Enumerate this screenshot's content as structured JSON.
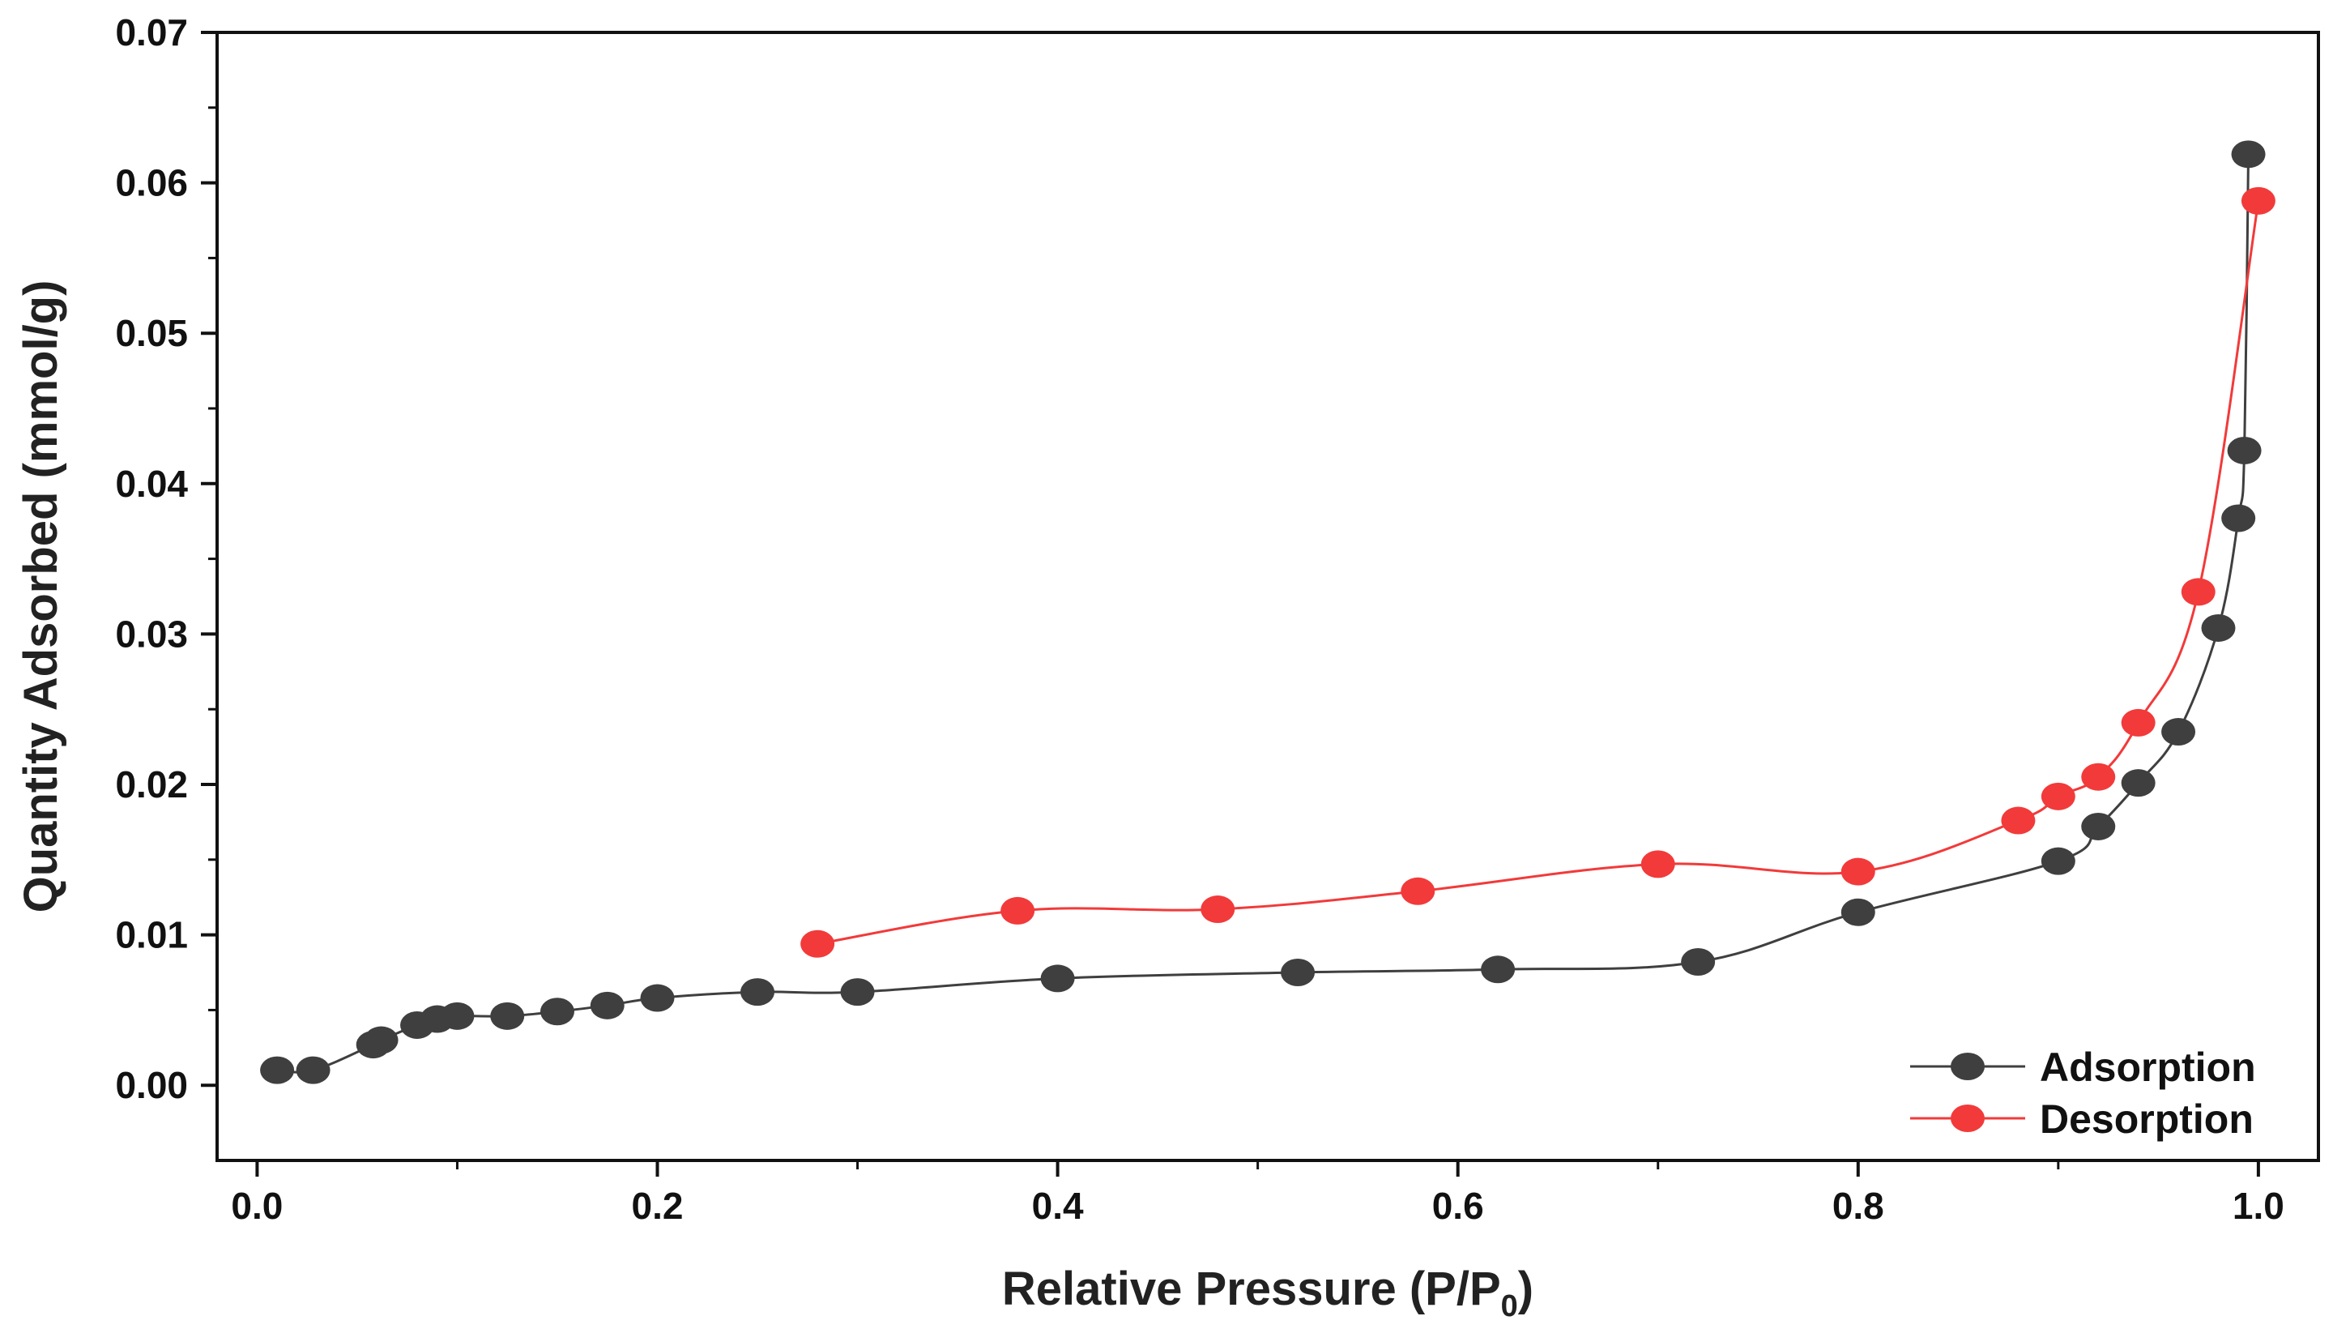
{
  "chart_data": {
    "type": "scatter",
    "xlabel": "Relative Pressure (P/P",
    "xlabel_subscript": "0",
    "xlabel_suffix": ")",
    "ylabel": "Quantity Adsorbed (mmol/g)",
    "xlim": [
      -0.02,
      1.03
    ],
    "ylim": [
      -0.005,
      0.07
    ],
    "x_ticks": [
      0.0,
      0.2,
      0.4,
      0.6,
      0.8,
      1.0
    ],
    "x_tick_labels": [
      "0.0",
      "0.2",
      "0.4",
      "0.6",
      "0.8",
      "1.0"
    ],
    "y_ticks": [
      0.0,
      0.01,
      0.02,
      0.03,
      0.04,
      0.05,
      0.06,
      0.07
    ],
    "y_tick_labels": [
      "0.00",
      "0.01",
      "0.02",
      "0.03",
      "0.04",
      "0.05",
      "0.06",
      "0.07"
    ],
    "grid": false,
    "legend_position": "bottom-right",
    "series": [
      {
        "name": "Adsorption",
        "color": "#3f3f3f",
        "x": [
          0.01,
          0.028,
          0.058,
          0.062,
          0.08,
          0.09,
          0.1,
          0.125,
          0.15,
          0.175,
          0.2,
          0.25,
          0.3,
          0.4,
          0.52,
          0.62,
          0.72,
          0.8,
          0.9,
          0.92,
          0.94,
          0.96,
          0.98,
          0.99,
          0.993,
          0.995
        ],
        "values": [
          0.001,
          0.001,
          0.0027,
          0.003,
          0.004,
          0.0044,
          0.0046,
          0.0046,
          0.0049,
          0.0053,
          0.0058,
          0.0062,
          0.0062,
          0.0071,
          0.0075,
          0.0077,
          0.0082,
          0.0115,
          0.0149,
          0.0172,
          0.0201,
          0.0235,
          0.0304,
          0.0377,
          0.0422,
          0.0619
        ]
      },
      {
        "name": "Desorption",
        "color": "#f23a3a",
        "x": [
          0.28,
          0.38,
          0.48,
          0.58,
          0.7,
          0.8,
          0.88,
          0.9,
          0.92,
          0.94,
          0.97,
          1.0
        ],
        "values": [
          0.0094,
          0.0116,
          0.0117,
          0.0129,
          0.0147,
          0.0142,
          0.0176,
          0.0192,
          0.0205,
          0.0241,
          0.0328,
          0.0588
        ]
      }
    ]
  }
}
